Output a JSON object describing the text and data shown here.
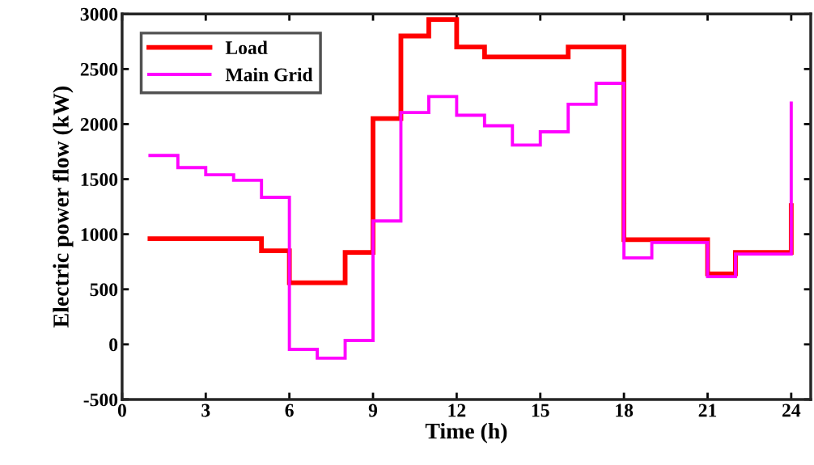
{
  "chart_data": {
    "type": "step",
    "xlabel": "Time (h)",
    "ylabel": "Electric power flow (kW)",
    "x": [
      1,
      2,
      3,
      4,
      5,
      6,
      7,
      8,
      9,
      10,
      11,
      12,
      13,
      14,
      15,
      16,
      17,
      18,
      19,
      20,
      21,
      22,
      23,
      24
    ],
    "series": [
      {
        "name": "Load",
        "color": "#ff0000",
        "values": [
          960,
          960,
          960,
          960,
          850,
          560,
          560,
          835,
          2050,
          2800,
          2950,
          2700,
          2610,
          2610,
          2610,
          2700,
          2700,
          950,
          950,
          950,
          640,
          835,
          835,
          1260
        ]
      },
      {
        "name": "Main Grid",
        "color": "#ff00ff",
        "values": [
          1715,
          1605,
          1540,
          1490,
          1335,
          -45,
          -125,
          35,
          1120,
          2105,
          2250,
          2080,
          1985,
          1810,
          1930,
          2180,
          2370,
          785,
          925,
          925,
          615,
          820,
          820,
          2190
        ]
      }
    ],
    "xlim": [
      0,
      24.7
    ],
    "ylim": [
      -500,
      3000
    ],
    "xticks": [
      0,
      3,
      6,
      9,
      12,
      15,
      18,
      21,
      24
    ],
    "yticks": [
      -500,
      0,
      500,
      1000,
      1500,
      2000,
      2500,
      3000
    ],
    "grid": false,
    "legend": "top left",
    "line_style": "solid",
    "marker": "none"
  }
}
